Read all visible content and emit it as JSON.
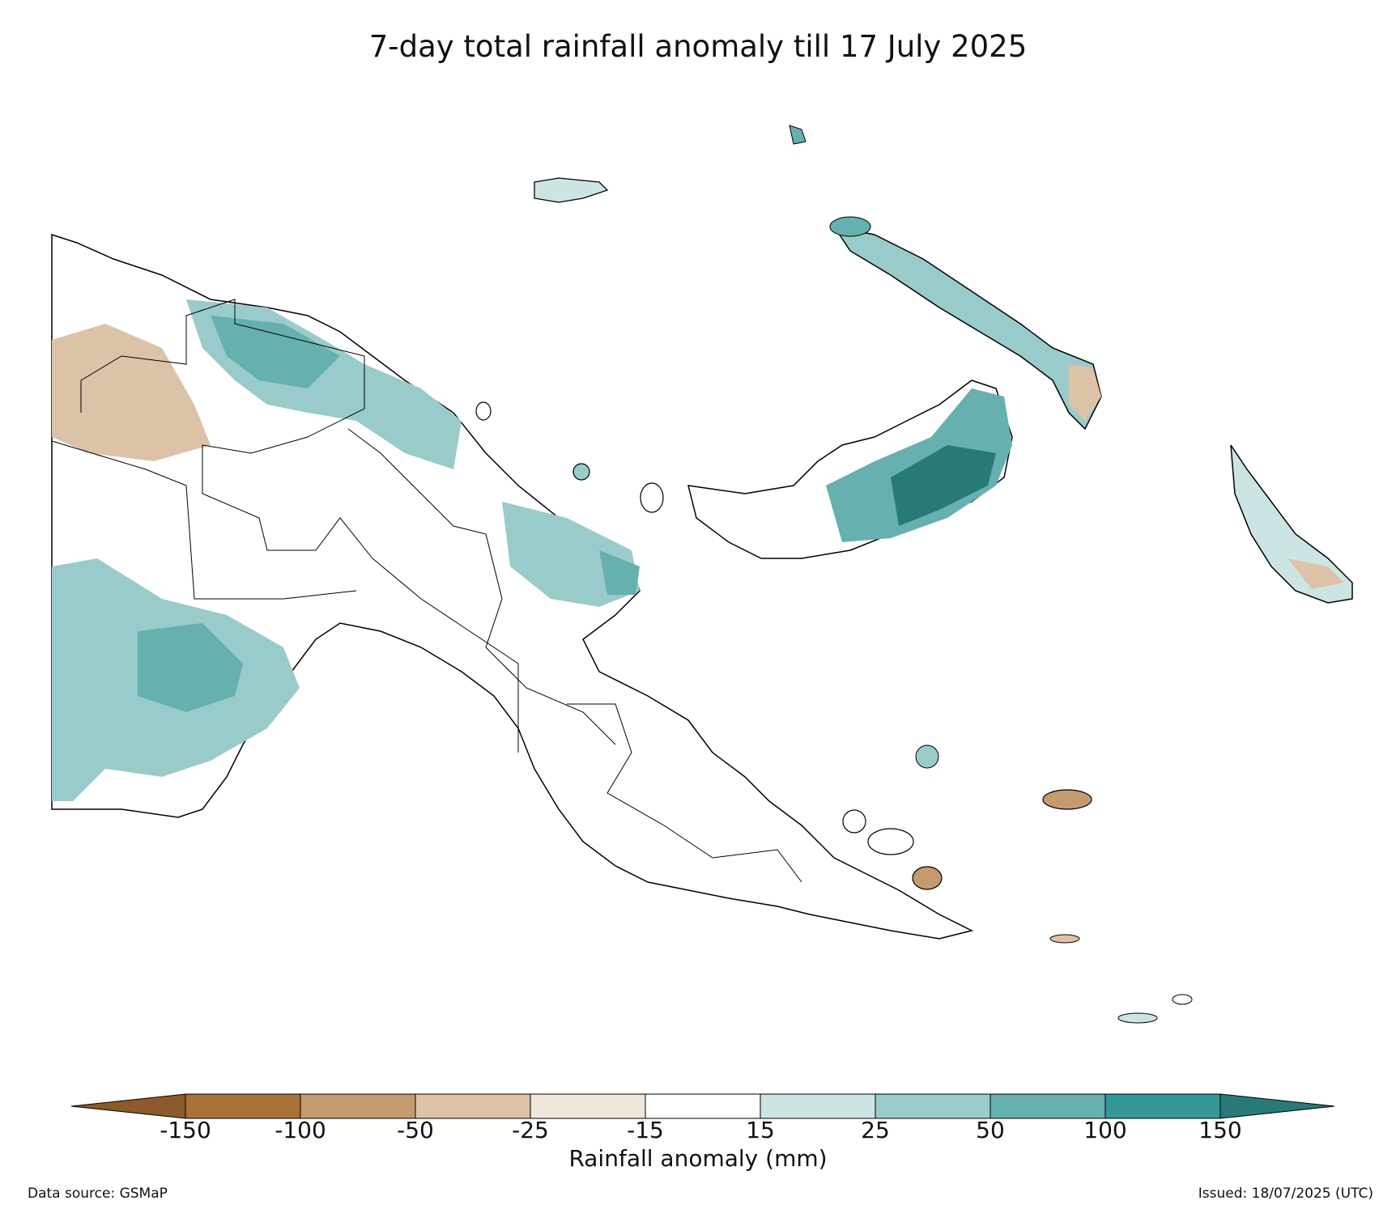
{
  "title": "7-day total rainfall anomaly till 17 July 2025",
  "colorbar": {
    "label": "Rainfall anomaly (mm)",
    "ticks": [
      "-150",
      "-100",
      "-50",
      "-25",
      "-15",
      "15",
      "25",
      "50",
      "100",
      "150"
    ],
    "colors": {
      "below_-150": "#8c5a2a",
      "-150_-100": "#a97038",
      "-100_-50": "#c49a6e",
      "-50_-25": "#dcc3a8",
      "-25_-15": "#f0e6dc",
      "-15_15": "#ffffff",
      "15_25": "#cce5e4",
      "25_50": "#99cbca",
      "50_100": "#66b0af",
      "100_150": "#339896",
      "above_150": "#287a78"
    }
  },
  "footer": {
    "source": "Data source: GSMaP",
    "issued": "Issued: 18/07/2025 (UTC)"
  }
}
